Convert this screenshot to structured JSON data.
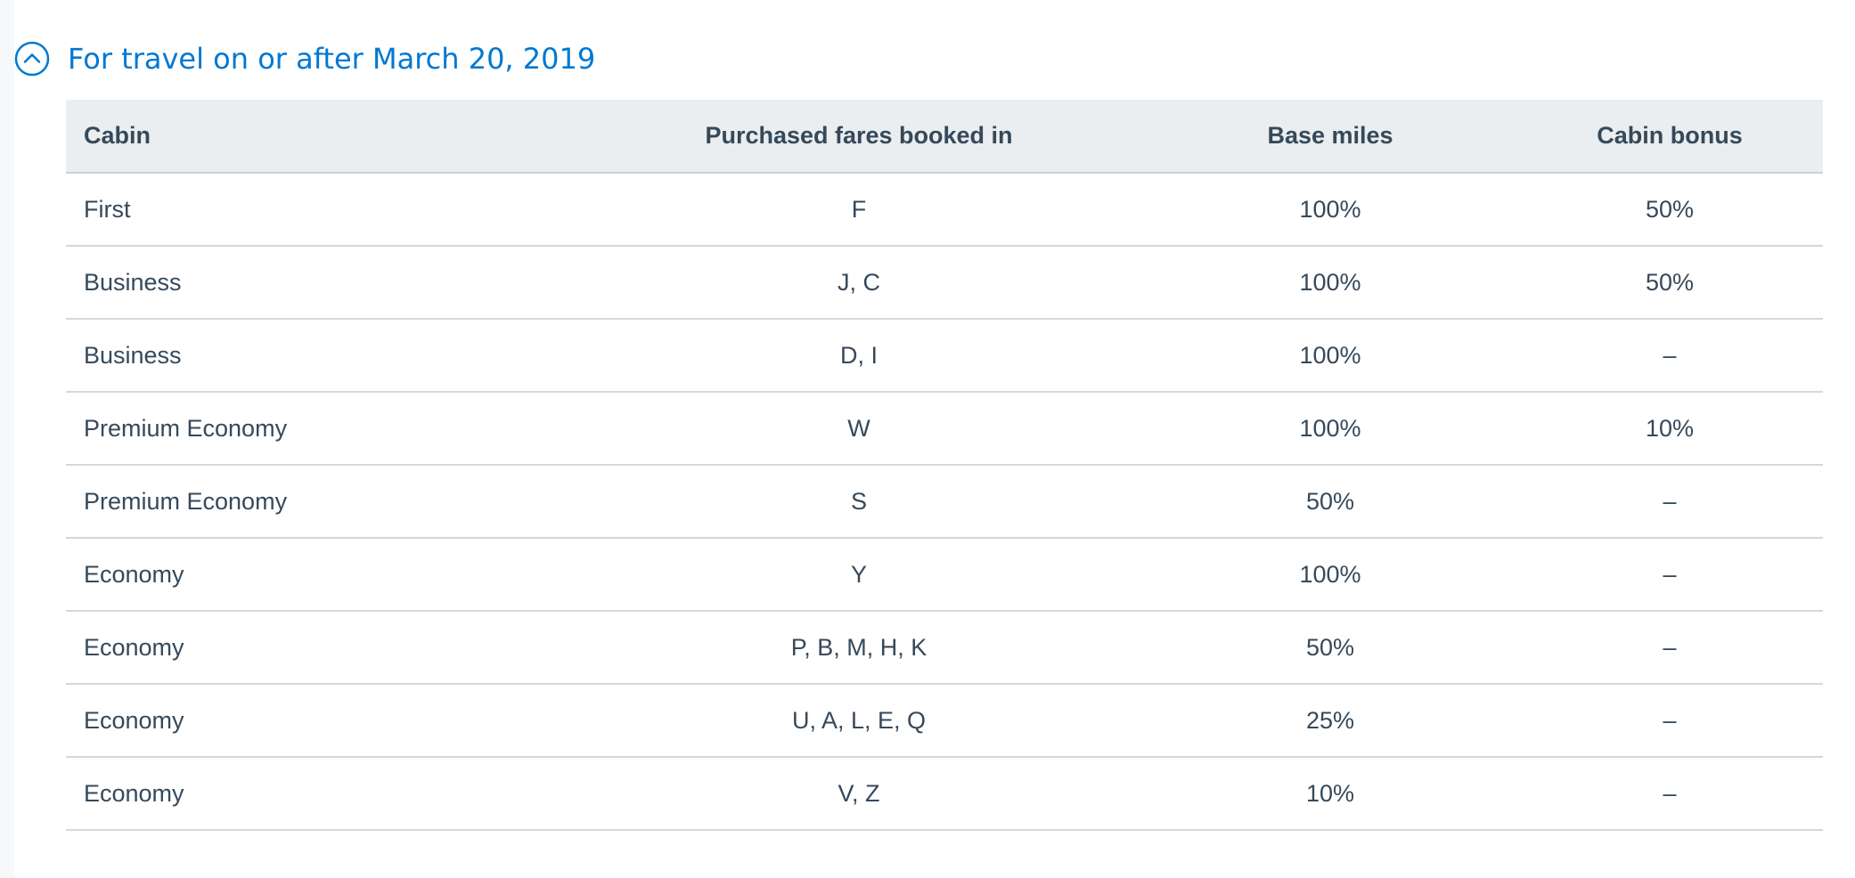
{
  "section": {
    "title": "For travel on or after March 20, 2019",
    "toggle_icon": "chevron-up-circle-icon",
    "accent_color": "#0078d2"
  },
  "table": {
    "headers": {
      "cabin": "Cabin",
      "fares": "Purchased fares booked in",
      "base_miles": "Base miles",
      "cabin_bonus": "Cabin bonus"
    },
    "rows": [
      {
        "cabin": "First",
        "fares": "F",
        "base_miles": "100%",
        "cabin_bonus": "50%"
      },
      {
        "cabin": "Business",
        "fares": "J, C",
        "base_miles": "100%",
        "cabin_bonus": "50%"
      },
      {
        "cabin": "Business",
        "fares": "D, I",
        "base_miles": "100%",
        "cabin_bonus": "–"
      },
      {
        "cabin": "Premium Economy",
        "fares": "W",
        "base_miles": "100%",
        "cabin_bonus": "10%"
      },
      {
        "cabin": "Premium Economy",
        "fares": "S",
        "base_miles": "50%",
        "cabin_bonus": "–"
      },
      {
        "cabin": "Economy",
        "fares": "Y",
        "base_miles": "100%",
        "cabin_bonus": "–"
      },
      {
        "cabin": "Economy",
        "fares": "P, B, M, H, K",
        "base_miles": "50%",
        "cabin_bonus": "–"
      },
      {
        "cabin": "Economy",
        "fares": "U, A, L, E, Q",
        "base_miles": "25%",
        "cabin_bonus": "–"
      },
      {
        "cabin": "Economy",
        "fares": "V, Z",
        "base_miles": "10%",
        "cabin_bonus": "–"
      }
    ]
  }
}
